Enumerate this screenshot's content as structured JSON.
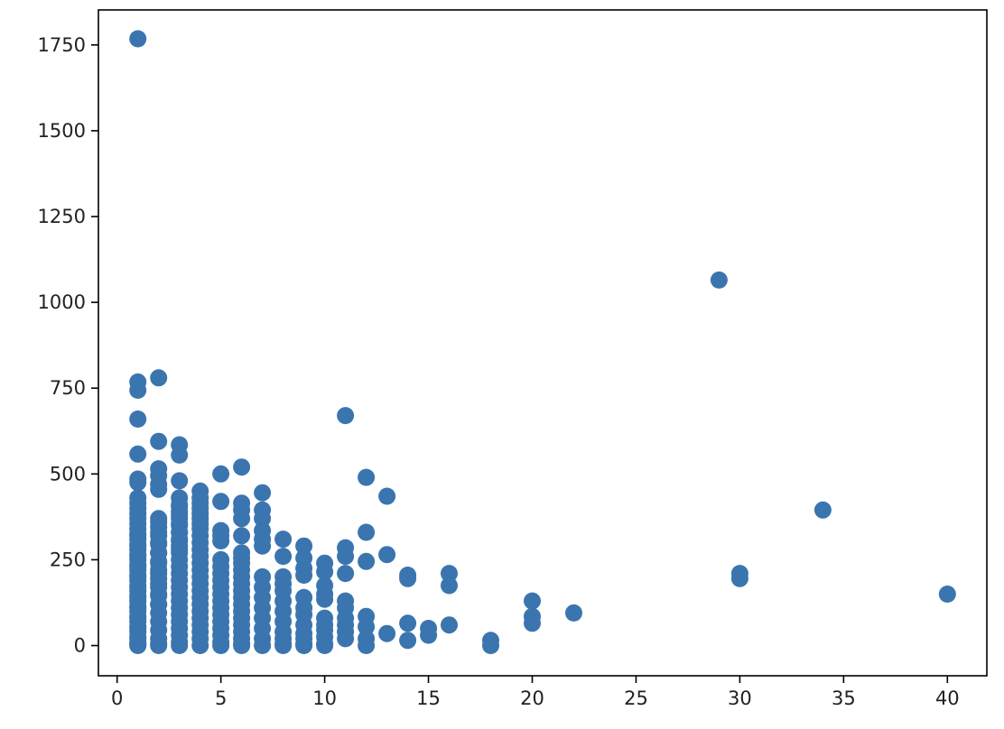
{
  "chart_data": {
    "type": "scatter",
    "title": "",
    "xlabel": "",
    "ylabel": "",
    "xlim": [
      -0.9,
      41.9
    ],
    "ylim": [
      -88,
      1852
    ],
    "x_ticks": [
      0,
      5,
      10,
      15,
      20,
      25,
      30,
      35,
      40
    ],
    "y_ticks": [
      0,
      250,
      500,
      750,
      1000,
      1250,
      1500,
      1750
    ],
    "grid": false,
    "legend": "none",
    "color": "#3b75af",
    "x": [
      1,
      1,
      1,
      1,
      1,
      1,
      1,
      1,
      1,
      1,
      1,
      1,
      1,
      1,
      1,
      1,
      1,
      1,
      1,
      1,
      1,
      1,
      1,
      1,
      1,
      1,
      1,
      1,
      1,
      1,
      1,
      1,
      1,
      1,
      1,
      1,
      1,
      1,
      1,
      1,
      1,
      1,
      1,
      1,
      1,
      1,
      1,
      1,
      1,
      1,
      2,
      2,
      2,
      2,
      2,
      2,
      2,
      2,
      2,
      2,
      2,
      2,
      2,
      2,
      2,
      2,
      2,
      2,
      2,
      2,
      2,
      2,
      2,
      2,
      2,
      2,
      2,
      2,
      2,
      2,
      2,
      2,
      3,
      3,
      3,
      3,
      3,
      3,
      3,
      3,
      3,
      3,
      3,
      3,
      3,
      3,
      3,
      3,
      3,
      3,
      3,
      3,
      3,
      3,
      3,
      3,
      3,
      3,
      3,
      3,
      3,
      3,
      3,
      3,
      4,
      4,
      4,
      4,
      4,
      4,
      4,
      4,
      4,
      4,
      4,
      4,
      4,
      4,
      4,
      4,
      4,
      4,
      4,
      4,
      4,
      4,
      4,
      4,
      4,
      5,
      5,
      5,
      5,
      5,
      5,
      5,
      5,
      5,
      5,
      5,
      5,
      5,
      5,
      5,
      5,
      5,
      5,
      5,
      6,
      6,
      6,
      6,
      6,
      6,
      6,
      6,
      6,
      6,
      6,
      6,
      6,
      6,
      6,
      6,
      6,
      6,
      6,
      6,
      6,
      7,
      7,
      7,
      7,
      7,
      7,
      7,
      7,
      7,
      7,
      7,
      7,
      7,
      7,
      8,
      8,
      8,
      8,
      8,
      8,
      8,
      8,
      8,
      8,
      8,
      8,
      9,
      9,
      9,
      9,
      9,
      9,
      9,
      9,
      9,
      9,
      9,
      9,
      10,
      10,
      10,
      10,
      10,
      10,
      10,
      10,
      10,
      10,
      10,
      11,
      11,
      11,
      11,
      11,
      11,
      11,
      11,
      11,
      11,
      12,
      12,
      12,
      12,
      12,
      12,
      12,
      13,
      13,
      13,
      14,
      14,
      14,
      14,
      15,
      15,
      16,
      16,
      16,
      18,
      18,
      20,
      20,
      20,
      22,
      29,
      30,
      30,
      34,
      40
    ],
    "y": [
      1768,
      768,
      744,
      660,
      558,
      485,
      475,
      430,
      415,
      400,
      385,
      370,
      355,
      340,
      325,
      310,
      295,
      280,
      265,
      250,
      235,
      220,
      205,
      190,
      175,
      160,
      145,
      130,
      115,
      100,
      85,
      70,
      55,
      40,
      25,
      10,
      5,
      3,
      320,
      290,
      260,
      230,
      200,
      170,
      140,
      110,
      80,
      50,
      20,
      0,
      780,
      595,
      515,
      495,
      470,
      455,
      370,
      345,
      320,
      295,
      270,
      245,
      220,
      195,
      170,
      145,
      120,
      95,
      70,
      45,
      20,
      5,
      0,
      360,
      330,
      300,
      270,
      240,
      210,
      180,
      150,
      120,
      585,
      555,
      480,
      430,
      410,
      390,
      370,
      350,
      330,
      310,
      290,
      270,
      250,
      230,
      210,
      190,
      170,
      150,
      130,
      110,
      90,
      70,
      50,
      30,
      10,
      0,
      405,
      380,
      355,
      330,
      305,
      280,
      450,
      430,
      415,
      400,
      385,
      370,
      355,
      340,
      320,
      300,
      280,
      260,
      240,
      220,
      200,
      180,
      160,
      140,
      120,
      100,
      80,
      60,
      40,
      20,
      0,
      500,
      420,
      335,
      320,
      305,
      230,
      210,
      190,
      170,
      150,
      130,
      110,
      90,
      70,
      50,
      30,
      10,
      0,
      250,
      520,
      415,
      395,
      370,
      320,
      270,
      255,
      240,
      220,
      200,
      180,
      160,
      140,
      120,
      100,
      80,
      60,
      40,
      20,
      0,
      5,
      445,
      395,
      370,
      335,
      310,
      290,
      200,
      170,
      140,
      110,
      80,
      50,
      20,
      0,
      310,
      260,
      200,
      180,
      160,
      130,
      100,
      70,
      40,
      20,
      5,
      0,
      290,
      255,
      225,
      205,
      140,
      110,
      90,
      60,
      35,
      20,
      5,
      0,
      240,
      215,
      175,
      150,
      135,
      80,
      60,
      45,
      25,
      5,
      0,
      670,
      285,
      260,
      210,
      130,
      110,
      80,
      60,
      40,
      20,
      490,
      330,
      245,
      85,
      55,
      20,
      0,
      435,
      265,
      35,
      205,
      195,
      65,
      15,
      50,
      30,
      210,
      175,
      60,
      15,
      0,
      130,
      85,
      65,
      95,
      1065,
      210,
      195,
      395,
      150
    ]
  }
}
